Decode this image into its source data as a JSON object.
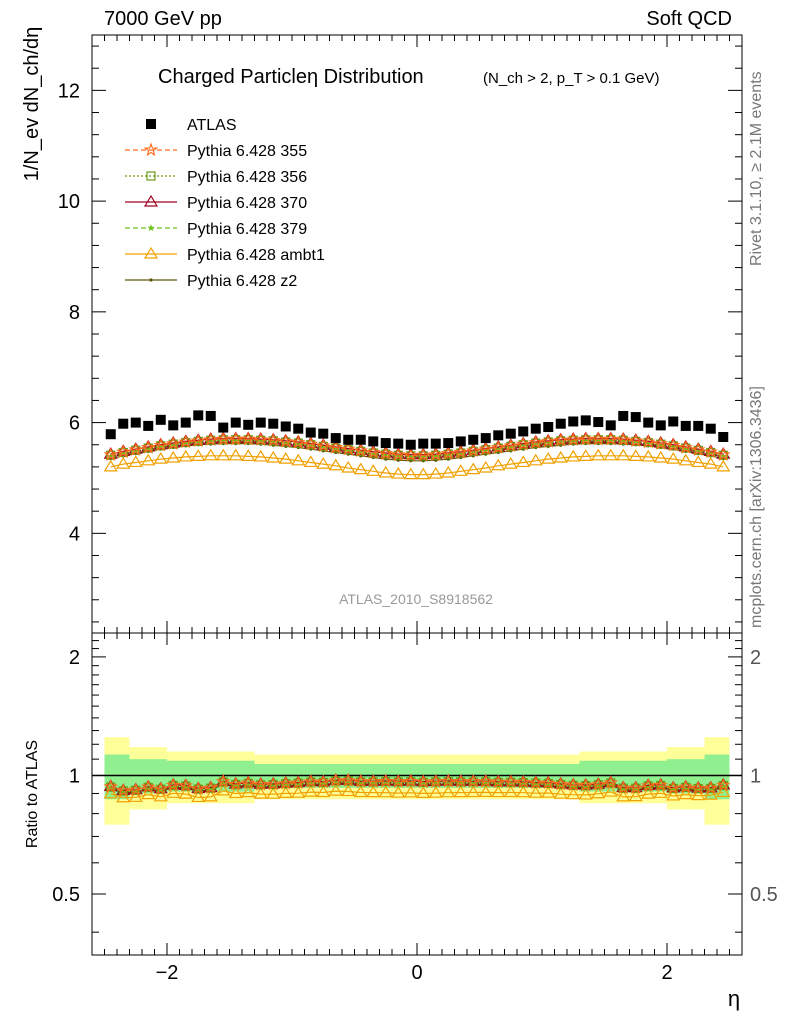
{
  "header": {
    "left": "7000 GeV pp",
    "right": "Soft QCD"
  },
  "side_labels": {
    "rivet": "Rivet 3.1.10, ≥ 2.1M events",
    "mcplots": "mcplots.cern.ch [arXiv:1306.3436]"
  },
  "analysis_tag": "ATLAS_2010_S8918562",
  "colors": {
    "atlas": "#000000",
    "p355": "#ff6a1a",
    "p356": "#6a9a10",
    "p370": "#a0001e",
    "p379": "#6ec21a",
    "ambt1": "#f0a000",
    "z2": "#5a5a00",
    "band_stat": "#90f090",
    "band_total": "#ffff99"
  },
  "chart_data": {
    "type": "scatter",
    "title": "Charged Particleη Distribution",
    "subtitle": "(N_ch > 2, p_T > 0.1 GeV)",
    "ylabel": "1/N_ev dN_ch/dη",
    "ratio_ylabel": "Ratio to ATLAS",
    "xlabel": "η",
    "xlim": [
      -2.6,
      2.6
    ],
    "ylim": [
      2.2,
      13.0
    ],
    "ratio_ylim": [
      0.35,
      2.3
    ],
    "ratio_scale": "log",
    "xticks": [
      "−2",
      "0",
      "2"
    ],
    "yticks": [
      "4",
      "6",
      "8",
      "10",
      "12"
    ],
    "ratio_yticks": [
      "0.5",
      "1",
      "2"
    ],
    "x": [
      -2.45,
      -2.35,
      -2.25,
      -2.15,
      -2.05,
      -1.95,
      -1.85,
      -1.75,
      -1.65,
      -1.55,
      -1.45,
      -1.35,
      -1.25,
      -1.15,
      -1.05,
      -0.95,
      -0.85,
      -0.75,
      -0.65,
      -0.55,
      -0.45,
      -0.35,
      -0.25,
      -0.15,
      -0.05,
      0.05,
      0.15,
      0.25,
      0.35,
      0.45,
      0.55,
      0.65,
      0.75,
      0.85,
      0.95,
      1.05,
      1.15,
      1.25,
      1.35,
      1.45,
      1.55,
      1.65,
      1.75,
      1.85,
      1.95,
      2.05,
      2.15,
      2.25,
      2.35,
      2.45
    ],
    "series": [
      {
        "name": "ATLAS",
        "values": [
          5.79,
          5.98,
          6.0,
          5.94,
          6.05,
          5.95,
          6.0,
          6.13,
          6.12,
          5.91,
          6.0,
          5.96,
          6.0,
          5.98,
          5.93,
          5.89,
          5.82,
          5.8,
          5.72,
          5.69,
          5.69,
          5.66,
          5.63,
          5.62,
          5.6,
          5.62,
          5.62,
          5.63,
          5.66,
          5.69,
          5.72,
          5.77,
          5.8,
          5.84,
          5.89,
          5.92,
          5.98,
          6.02,
          6.04,
          6.01,
          5.95,
          6.12,
          6.1,
          6.0,
          5.95,
          6.02,
          5.94,
          5.94,
          5.89,
          5.74
        ]
      },
      {
        "name": "Pythia 6.428 355",
        "values": [
          5.42,
          5.47,
          5.51,
          5.55,
          5.59,
          5.62,
          5.65,
          5.67,
          5.69,
          5.7,
          5.7,
          5.7,
          5.69,
          5.68,
          5.66,
          5.64,
          5.61,
          5.58,
          5.55,
          5.52,
          5.49,
          5.46,
          5.44,
          5.42,
          5.41,
          5.41,
          5.42,
          5.44,
          5.46,
          5.49,
          5.52,
          5.55,
          5.58,
          5.61,
          5.64,
          5.66,
          5.68,
          5.69,
          5.7,
          5.7,
          5.7,
          5.69,
          5.67,
          5.65,
          5.62,
          5.59,
          5.55,
          5.51,
          5.47,
          5.42
        ]
      },
      {
        "name": "Pythia 6.428 356",
        "values": [
          5.41,
          5.46,
          5.5,
          5.54,
          5.58,
          5.61,
          5.64,
          5.66,
          5.68,
          5.69,
          5.69,
          5.69,
          5.68,
          5.67,
          5.65,
          5.63,
          5.6,
          5.57,
          5.54,
          5.51,
          5.48,
          5.45,
          5.43,
          5.41,
          5.4,
          5.4,
          5.41,
          5.43,
          5.45,
          5.48,
          5.51,
          5.54,
          5.57,
          5.6,
          5.63,
          5.65,
          5.67,
          5.68,
          5.69,
          5.69,
          5.69,
          5.68,
          5.66,
          5.64,
          5.61,
          5.58,
          5.54,
          5.5,
          5.46,
          5.41
        ]
      },
      {
        "name": "Pythia 6.428 370",
        "values": [
          5.43,
          5.48,
          5.52,
          5.56,
          5.6,
          5.63,
          5.66,
          5.68,
          5.7,
          5.71,
          5.71,
          5.71,
          5.7,
          5.69,
          5.67,
          5.65,
          5.62,
          5.59,
          5.56,
          5.53,
          5.5,
          5.47,
          5.45,
          5.43,
          5.42,
          5.42,
          5.43,
          5.45,
          5.47,
          5.5,
          5.53,
          5.56,
          5.59,
          5.62,
          5.65,
          5.67,
          5.69,
          5.7,
          5.71,
          5.71,
          5.71,
          5.7,
          5.68,
          5.66,
          5.63,
          5.6,
          5.56,
          5.52,
          5.48,
          5.43
        ]
      },
      {
        "name": "Pythia 6.428 379",
        "values": [
          5.39,
          5.44,
          5.48,
          5.52,
          5.56,
          5.59,
          5.62,
          5.64,
          5.66,
          5.67,
          5.67,
          5.67,
          5.66,
          5.65,
          5.63,
          5.61,
          5.58,
          5.55,
          5.52,
          5.49,
          5.46,
          5.43,
          5.41,
          5.39,
          5.38,
          5.38,
          5.39,
          5.41,
          5.43,
          5.46,
          5.49,
          5.52,
          5.55,
          5.58,
          5.61,
          5.63,
          5.65,
          5.66,
          5.67,
          5.67,
          5.67,
          5.66,
          5.64,
          5.62,
          5.59,
          5.56,
          5.52,
          5.48,
          5.44,
          5.39
        ]
      },
      {
        "name": "Pythia 6.428 ambt1",
        "values": [
          5.2,
          5.25,
          5.28,
          5.31,
          5.34,
          5.36,
          5.38,
          5.39,
          5.4,
          5.4,
          5.4,
          5.39,
          5.38,
          5.36,
          5.34,
          5.31,
          5.28,
          5.25,
          5.22,
          5.18,
          5.15,
          5.12,
          5.09,
          5.07,
          5.06,
          5.06,
          5.07,
          5.09,
          5.12,
          5.15,
          5.18,
          5.22,
          5.25,
          5.28,
          5.31,
          5.34,
          5.36,
          5.38,
          5.39,
          5.4,
          5.4,
          5.4,
          5.39,
          5.38,
          5.36,
          5.34,
          5.31,
          5.28,
          5.25,
          5.2
        ]
      },
      {
        "name": "Pythia 6.428 z2",
        "values": [
          5.35,
          5.4,
          5.44,
          5.48,
          5.52,
          5.55,
          5.58,
          5.6,
          5.61,
          5.62,
          5.62,
          5.62,
          5.61,
          5.59,
          5.57,
          5.55,
          5.52,
          5.49,
          5.46,
          5.43,
          5.4,
          5.37,
          5.34,
          5.32,
          5.31,
          5.31,
          5.32,
          5.34,
          5.37,
          5.4,
          5.43,
          5.46,
          5.49,
          5.52,
          5.55,
          5.57,
          5.59,
          5.61,
          5.62,
          5.62,
          5.62,
          5.61,
          5.6,
          5.58,
          5.55,
          5.52,
          5.48,
          5.44,
          5.4,
          5.35
        ]
      }
    ],
    "ratio_bands": {
      "x_edges": [
        -2.5,
        -2.3,
        -2.0,
        -1.3,
        1.3,
        2.0,
        2.3,
        2.5
      ],
      "stat": [
        0.13,
        0.1,
        0.09,
        0.07,
        0.09,
        0.1,
        0.13
      ],
      "total": [
        0.25,
        0.18,
        0.15,
        0.13,
        0.15,
        0.18,
        0.25
      ]
    },
    "grid": false,
    "legend_position": "top-left"
  }
}
